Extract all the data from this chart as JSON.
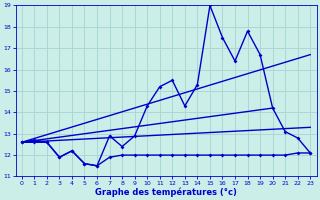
{
  "xlabel": "Graphe des températures (°c)",
  "background_color": "#cceee8",
  "grid_color": "#aad8d4",
  "line_color": "#0000cc",
  "xlim": [
    -0.5,
    23.5
  ],
  "ylim": [
    11,
    19
  ],
  "yticks": [
    11,
    12,
    13,
    14,
    15,
    16,
    17,
    18,
    19
  ],
  "xticks": [
    0,
    1,
    2,
    3,
    4,
    5,
    6,
    7,
    8,
    9,
    10,
    11,
    12,
    13,
    14,
    15,
    16,
    17,
    18,
    19,
    20,
    21,
    22,
    23
  ],
  "series": {
    "temp_line": {
      "x": [
        0,
        1,
        2,
        3,
        4,
        5,
        6,
        7,
        8,
        9,
        10,
        11,
        12,
        13,
        14,
        15,
        16,
        17,
        18,
        19,
        20,
        21,
        22,
        23
      ],
      "y": [
        12.6,
        12.7,
        12.6,
        11.9,
        12.2,
        11.6,
        11.5,
        12.9,
        12.4,
        12.9,
        14.3,
        15.2,
        15.5,
        14.3,
        15.3,
        19.0,
        17.5,
        16.4,
        17.8,
        16.7,
        14.2,
        13.1,
        12.8,
        12.1
      ]
    },
    "flat_line": {
      "x": [
        0,
        1,
        2,
        3,
        4,
        5,
        6,
        7,
        8,
        9,
        10,
        11,
        12,
        13,
        14,
        15,
        16,
        17,
        18,
        19,
        20,
        21,
        22,
        23
      ],
      "y": [
        12.6,
        12.6,
        12.6,
        11.9,
        12.2,
        11.6,
        11.5,
        11.9,
        12.0,
        12.0,
        12.0,
        12.0,
        12.0,
        12.0,
        12.0,
        12.0,
        12.0,
        12.0,
        12.0,
        12.0,
        12.0,
        12.0,
        12.1,
        12.1
      ]
    },
    "trend_steep": {
      "x": [
        0,
        23
      ],
      "y": [
        12.6,
        16.7
      ]
    },
    "trend_mid": {
      "x": [
        0,
        20
      ],
      "y": [
        12.6,
        14.2
      ]
    },
    "trend_flat": {
      "x": [
        0,
        23
      ],
      "y": [
        12.6,
        13.3
      ]
    }
  }
}
